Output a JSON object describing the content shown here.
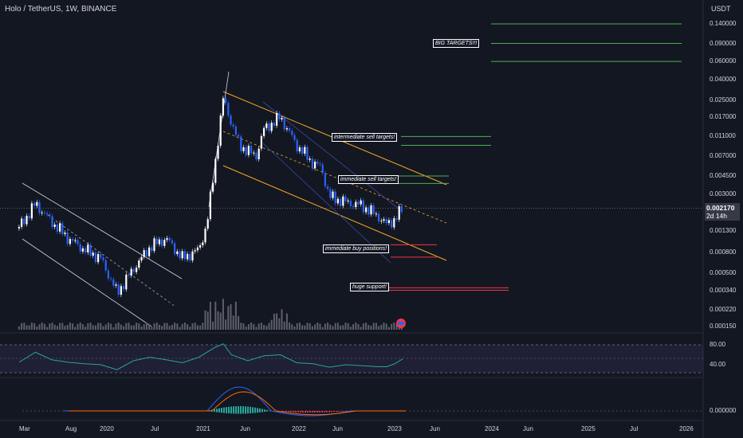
{
  "header": {
    "symbol_title": "Holo / TetherUS, 1W, BINANCE",
    "currency": "USDT"
  },
  "price_tag": {
    "price": "0.002170",
    "countdown": "2d 14h"
  },
  "annotations": {
    "big_targets": "BIG TARGETS!!!",
    "intermediate_sell": "intermediate sell targets!",
    "immediate_sell": "immediate sell targets!",
    "immediate_buy": "immediate buy positions!",
    "huge_support": "huge support!"
  },
  "colors": {
    "background": "#131722",
    "bull_candle": "#ffffff",
    "bear_candle": "#2962ff",
    "channel_orange": "#f5a623",
    "target_green": "#4caf50",
    "support_red": "#f23645",
    "rsi_line": "#26a69a",
    "macd_line": "#2962ff",
    "signal_line": "#ff6d00"
  },
  "chart_data": [
    {
      "type": "line",
      "title": "",
      "y_scale": "log",
      "y_ticks": [
        "0.140000",
        "0.090000",
        "0.060000",
        "0.040000",
        "0.025000",
        "0.017000",
        "0.011000",
        "0.007000",
        "0.004500",
        "0.003000",
        "0.001300",
        "0.000800",
        "0.000500",
        "0.000340",
        "0.000220",
        "0.000150"
      ],
      "x_ticks": [
        "Mar",
        "Aug",
        "2020",
        "Jul",
        "2021",
        "Jun",
        "2022",
        "Jun",
        "2023",
        "Jun",
        "2024",
        "Jun",
        "2025",
        "Jul",
        "2026"
      ],
      "series": [
        {
          "values": [
            [
              "2019-03",
              0.0014
            ],
            [
              "2019-05",
              0.0024
            ],
            [
              "2019-07",
              0.0016
            ],
            [
              "2019-09",
              0.0011
            ],
            [
              "2019-11",
              0.00085
            ],
            [
              "2020-01",
              0.0007
            ],
            [
              "2020-03",
              0.00032
            ],
            [
              "2020-05",
              0.00055
            ],
            [
              "2020-07",
              0.0009
            ],
            [
              "2020-09",
              0.0011
            ],
            [
              "2020-11",
              0.0007
            ],
            [
              "2021-01",
              0.00085
            ],
            [
              "2021-02",
              0.0015
            ],
            [
              "2021-03",
              0.006
            ],
            [
              "2021-04",
              0.026
            ],
            [
              "2021-05",
              0.015
            ],
            [
              "2021-06",
              0.009
            ],
            [
              "2021-08",
              0.007
            ],
            [
              "2021-09",
              0.013
            ],
            [
              "2021-11",
              0.017
            ],
            [
              "2022-01",
              0.009
            ],
            [
              "2022-03",
              0.006
            ],
            [
              "2022-04",
              0.0055
            ],
            [
              "2022-05",
              0.0028
            ],
            [
              "2022-07",
              0.0025
            ],
            [
              "2022-09",
              0.0023
            ],
            [
              "2022-11",
              0.0018
            ],
            [
              "2022-12",
              0.0015
            ],
            [
              "2023-01",
              0.0017
            ],
            [
              "2023-02",
              0.00217
            ]
          ]
        }
      ],
      "price_levels": [
        {
          "label": "BIG TARGETS!!!",
          "values": [
            0.14,
            0.09,
            0.06
          ]
        },
        {
          "label": "intermediate sell targets!",
          "values": [
            0.011,
            0.009
          ]
        },
        {
          "label": "immediate sell targets!",
          "values": [
            0.0045,
            0.0038
          ]
        },
        {
          "label": "immediate buy positions!",
          "values": [
            0.00095,
            0.00072
          ]
        },
        {
          "label": "huge support!",
          "values": [
            0.00036,
            0.00034
          ]
        }
      ],
      "last_price": 0.00217
    },
    {
      "type": "line",
      "title": "",
      "y_ticks": [
        "80.00",
        "40.00"
      ],
      "series": [
        {
          "values": [
            [
              "2019-03",
              45
            ],
            [
              "2019-05",
              65
            ],
            [
              "2019-07",
              50
            ],
            [
              "2019-09",
              45
            ],
            [
              "2019-11",
              42
            ],
            [
              "2020-01",
              40
            ],
            [
              "2020-03",
              30
            ],
            [
              "2020-05",
              48
            ],
            [
              "2020-07",
              55
            ],
            [
              "2020-09",
              50
            ],
            [
              "2020-11",
              44
            ],
            [
              "2021-01",
              55
            ],
            [
              "2021-03",
              75
            ],
            [
              "2021-04",
              82
            ],
            [
              "2021-05",
              60
            ],
            [
              "2021-07",
              48
            ],
            [
              "2021-09",
              58
            ],
            [
              "2021-11",
              60
            ],
            [
              "2022-01",
              44
            ],
            [
              "2022-03",
              42
            ],
            [
              "2022-05",
              35
            ],
            [
              "2022-07",
              40
            ],
            [
              "2022-09",
              38
            ],
            [
              "2022-11",
              36
            ],
            [
              "2022-12",
              36
            ],
            [
              "2023-01",
              42
            ],
            [
              "2023-02",
              52
            ]
          ]
        }
      ]
    },
    {
      "type": "line",
      "title": "",
      "y_ticks": [
        "0.000000"
      ]
    }
  ]
}
